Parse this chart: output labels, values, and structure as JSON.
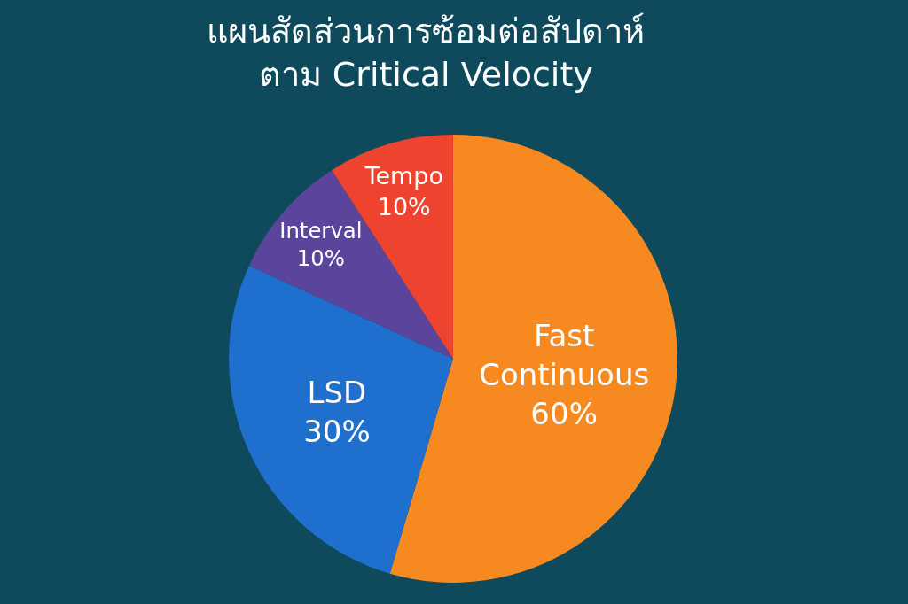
{
  "chart_data": {
    "type": "pie",
    "title": "แผนสัดส่วนการซ้อมต่อสัปดาห์\nตาม Critical Velocity",
    "categories": [
      "Fast Continuous",
      "LSD",
      "Interval",
      "Tempo"
    ],
    "values": [
      60,
      30,
      10,
      10
    ],
    "value_labels": [
      "60%",
      "30%",
      "10%",
      "10%"
    ],
    "colors": [
      "#f68a20",
      "#1e6fce",
      "#5a449c",
      "#ee432e"
    ]
  }
}
